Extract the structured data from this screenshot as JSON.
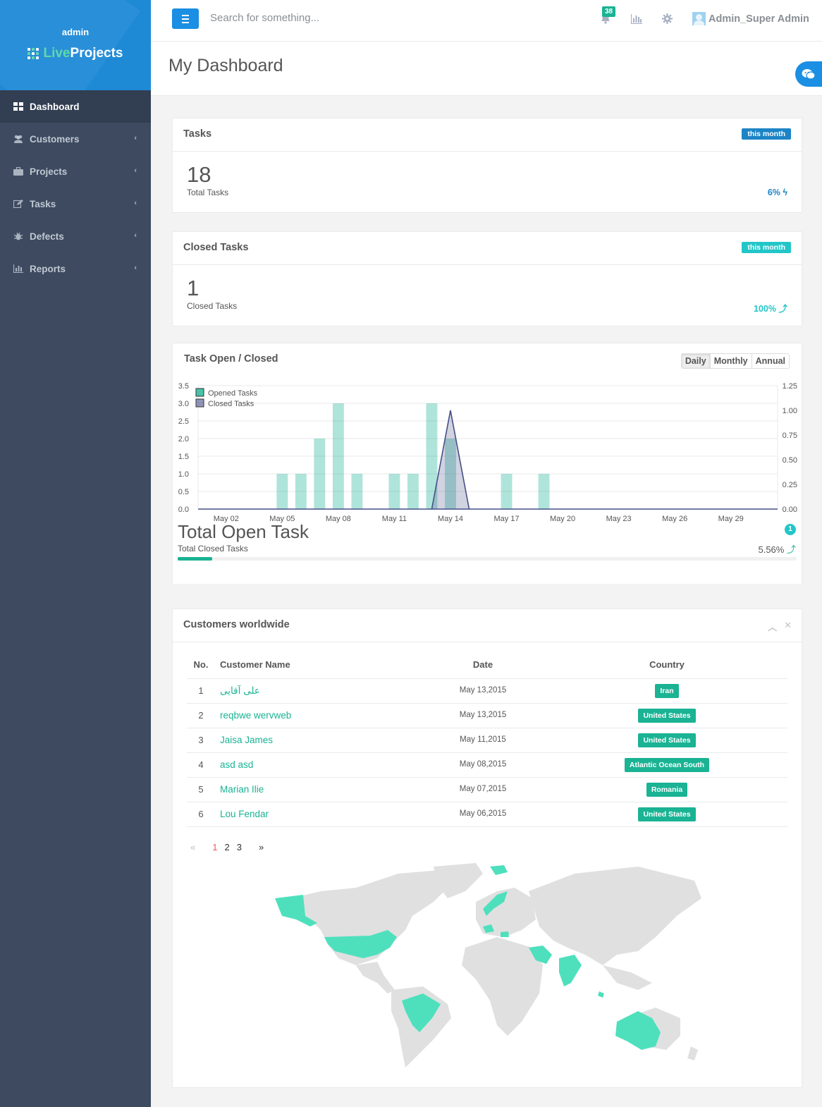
{
  "sidebar": {
    "user": "admin",
    "logo_live": "Live",
    "logo_projects": "Projects",
    "items": [
      {
        "label": "Dashboard"
      },
      {
        "label": "Customers"
      },
      {
        "label": "Projects"
      },
      {
        "label": "Tasks"
      },
      {
        "label": "Defects"
      },
      {
        "label": "Reports"
      }
    ]
  },
  "topbar": {
    "search_placeholder": "Search for something...",
    "notification_count": "38",
    "user_name": "Admin_Super Admin"
  },
  "page": {
    "title": "My Dashboard"
  },
  "tasks_box": {
    "title": "Tasks",
    "period": "this month",
    "value": "18",
    "label": "Total Tasks",
    "percent": "6%"
  },
  "closed_box": {
    "title": "Closed Tasks",
    "period": "this month",
    "value": "1",
    "label": "Closed Tasks",
    "percent": "100%"
  },
  "chart_box": {
    "title": "Task Open / Closed",
    "buttons": [
      "Daily",
      "Monthly",
      "Annual"
    ],
    "total_open_label": "Total Open Task",
    "total_closed_label": "Total Closed Tasks",
    "badge": "1",
    "percent": "5.56%",
    "progress": 0.0556
  },
  "chart_data": {
    "type": "bar",
    "x_labels": [
      "May 02",
      "May 05",
      "May 08",
      "May 11",
      "May 14",
      "May 17",
      "May 20",
      "May 23",
      "May 26",
      "May 29"
    ],
    "x_start_day": 1,
    "x_end_day": 31,
    "y_left_ticks": [
      "0.0",
      "0.5",
      "1.0",
      "1.5",
      "2.0",
      "2.5",
      "3.0",
      "3.5"
    ],
    "y_right_ticks": [
      "0.00",
      "0.25",
      "0.50",
      "0.75",
      "1.00",
      "1.25"
    ],
    "ylim_left": [
      0,
      3.5
    ],
    "ylim_right": [
      0,
      1.25
    ],
    "series": [
      {
        "name": "Opened Tasks",
        "type": "bar",
        "color": "#1ab394",
        "points": [
          {
            "day": 5,
            "value": 1
          },
          {
            "day": 6,
            "value": 1
          },
          {
            "day": 7,
            "value": 2
          },
          {
            "day": 8,
            "value": 3
          },
          {
            "day": 9,
            "value": 1
          },
          {
            "day": 11,
            "value": 1
          },
          {
            "day": 12,
            "value": 1
          },
          {
            "day": 13,
            "value": 3
          },
          {
            "day": 14,
            "value": 2
          },
          {
            "day": 17,
            "value": 1
          },
          {
            "day": 19,
            "value": 1
          }
        ]
      },
      {
        "name": "Closed Tasks",
        "type": "area",
        "color": "#464f88",
        "points": [
          {
            "day": 13,
            "value": 0
          },
          {
            "day": 14,
            "value": 1
          },
          {
            "day": 15,
            "value": 0
          }
        ]
      }
    ],
    "legend": "top-left"
  },
  "customers": {
    "title": "Customers worldwide",
    "columns": [
      "No.",
      "Customer Name",
      "Date",
      "Country"
    ],
    "rows": [
      {
        "no": "1",
        "name": "علی آقایی",
        "date": "May 13,2015",
        "country": "Iran"
      },
      {
        "no": "2",
        "name": "reqbwe wervweb",
        "date": "May 13,2015",
        "country": "United States"
      },
      {
        "no": "3",
        "name": "Jaisa James",
        "date": "May 11,2015",
        "country": "United States"
      },
      {
        "no": "4",
        "name": "asd asd",
        "date": "May 08,2015",
        "country": "Atlantic Ocean South"
      },
      {
        "no": "5",
        "name": "Marian Ilie",
        "date": "May 07,2015",
        "country": "Romania"
      },
      {
        "no": "6",
        "name": "Lou Fendar",
        "date": "May 06,2015",
        "country": "United States"
      }
    ],
    "pager": {
      "prev": "«",
      "pages": [
        "1",
        "2",
        "3"
      ],
      "next": "»"
    }
  },
  "colors": {
    "accent": "#1ab394",
    "primary": "#1a8fe3",
    "info": "#23c6c8",
    "sidebar": "#3d4a5f"
  }
}
